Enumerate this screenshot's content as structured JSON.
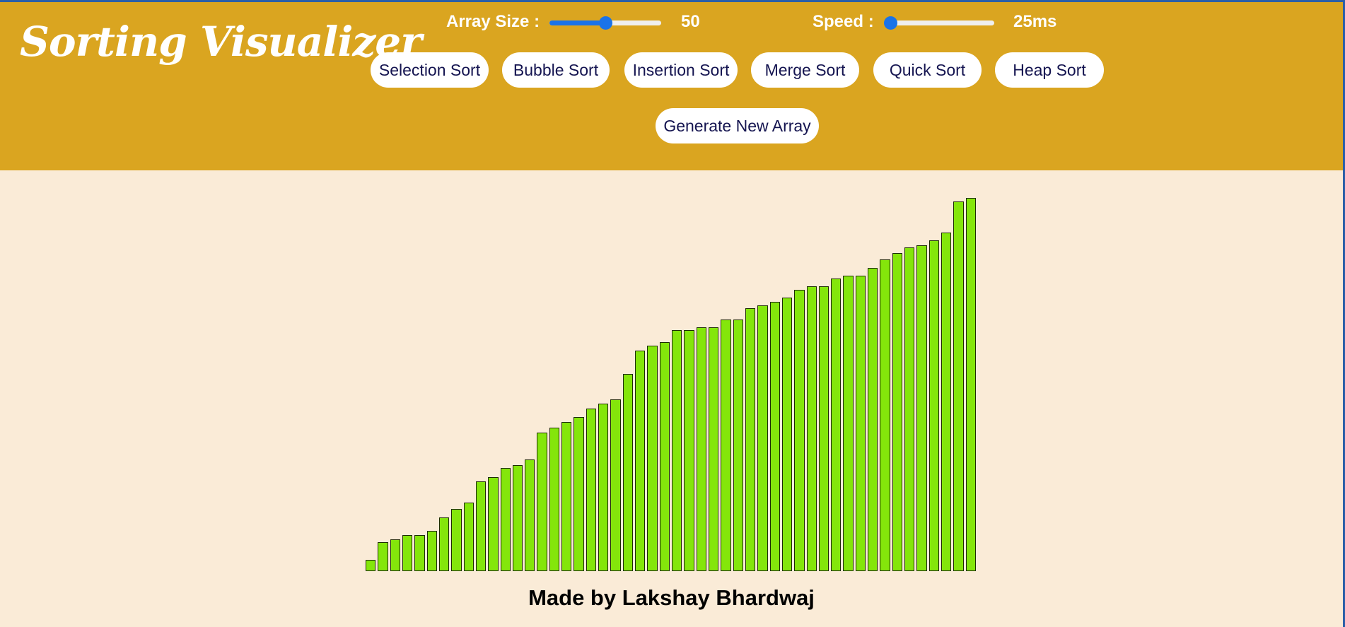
{
  "header": {
    "title": "Sorting Visualizer",
    "array_size": {
      "label": "Array Size :",
      "value": "50",
      "level": 0.5
    },
    "speed": {
      "label": "Speed :",
      "value": "25ms",
      "level": 0.0
    },
    "algorithms": [
      "Selection Sort",
      "Bubble Sort",
      "Insertion Sort",
      "Merge Sort",
      "Quick Sort",
      "Heap Sort"
    ],
    "generate_label": "Generate New Array"
  },
  "array": {
    "values": [
      15,
      37,
      41,
      47,
      47,
      52,
      69,
      80,
      89,
      116,
      121,
      133,
      137,
      144,
      179,
      185,
      193,
      199,
      210,
      216,
      222,
      255,
      285,
      291,
      296,
      311,
      311,
      315,
      315,
      325,
      325,
      340,
      343,
      348,
      353,
      363,
      368,
      368,
      378,
      382,
      382,
      392,
      403,
      411,
      418,
      421,
      427,
      437,
      477,
      482
    ],
    "bar_color": "#84e60b",
    "max": 482
  },
  "footer": {
    "credit": "Made by Lakshay Bhardwaj"
  },
  "colors": {
    "header_bg": "#daa520",
    "page_bg": "#faebd7",
    "accent": "#1a73e8",
    "button_text": "#141450"
  }
}
